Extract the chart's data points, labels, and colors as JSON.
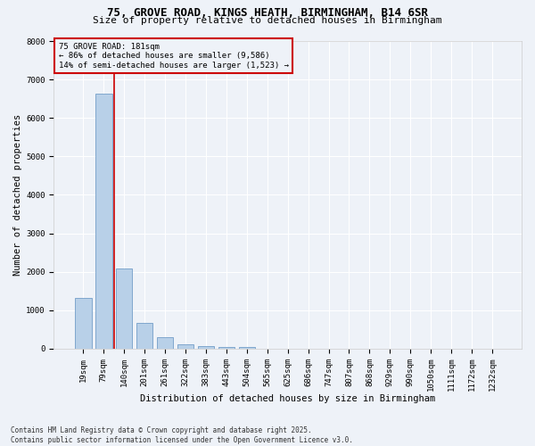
{
  "title_line1": "75, GROVE ROAD, KINGS HEATH, BIRMINGHAM, B14 6SR",
  "title_line2": "Size of property relative to detached houses in Birmingham",
  "xlabel": "Distribution of detached houses by size in Birmingham",
  "ylabel": "Number of detached properties",
  "categories": [
    "19sqm",
    "79sqm",
    "140sqm",
    "201sqm",
    "261sqm",
    "322sqm",
    "383sqm",
    "443sqm",
    "504sqm",
    "565sqm",
    "625sqm",
    "686sqm",
    "747sqm",
    "807sqm",
    "868sqm",
    "929sqm",
    "990sqm",
    "1050sqm",
    "1111sqm",
    "1172sqm",
    "1232sqm"
  ],
  "values": [
    1310,
    6630,
    2090,
    680,
    305,
    120,
    70,
    50,
    50,
    0,
    0,
    0,
    0,
    0,
    0,
    0,
    0,
    0,
    0,
    0,
    0
  ],
  "bar_color": "#b8d0e8",
  "bar_edge_color": "#6090c0",
  "vline_x": 1.5,
  "vline_color": "#cc0000",
  "annotation_text": "75 GROVE ROAD: 181sqm\n← 86% of detached houses are smaller (9,586)\n14% of semi-detached houses are larger (1,523) →",
  "annotation_box_color": "#cc0000",
  "background_color": "#eef2f8",
  "grid_color": "#ffffff",
  "ylim": [
    0,
    8000
  ],
  "yticks": [
    0,
    1000,
    2000,
    3000,
    4000,
    5000,
    6000,
    7000,
    8000
  ],
  "footnote": "Contains HM Land Registry data © Crown copyright and database right 2025.\nContains public sector information licensed under the Open Government Licence v3.0.",
  "title_fontsize": 9,
  "subtitle_fontsize": 8,
  "axis_label_fontsize": 7.5,
  "tick_fontsize": 6.5,
  "footnote_fontsize": 5.5
}
